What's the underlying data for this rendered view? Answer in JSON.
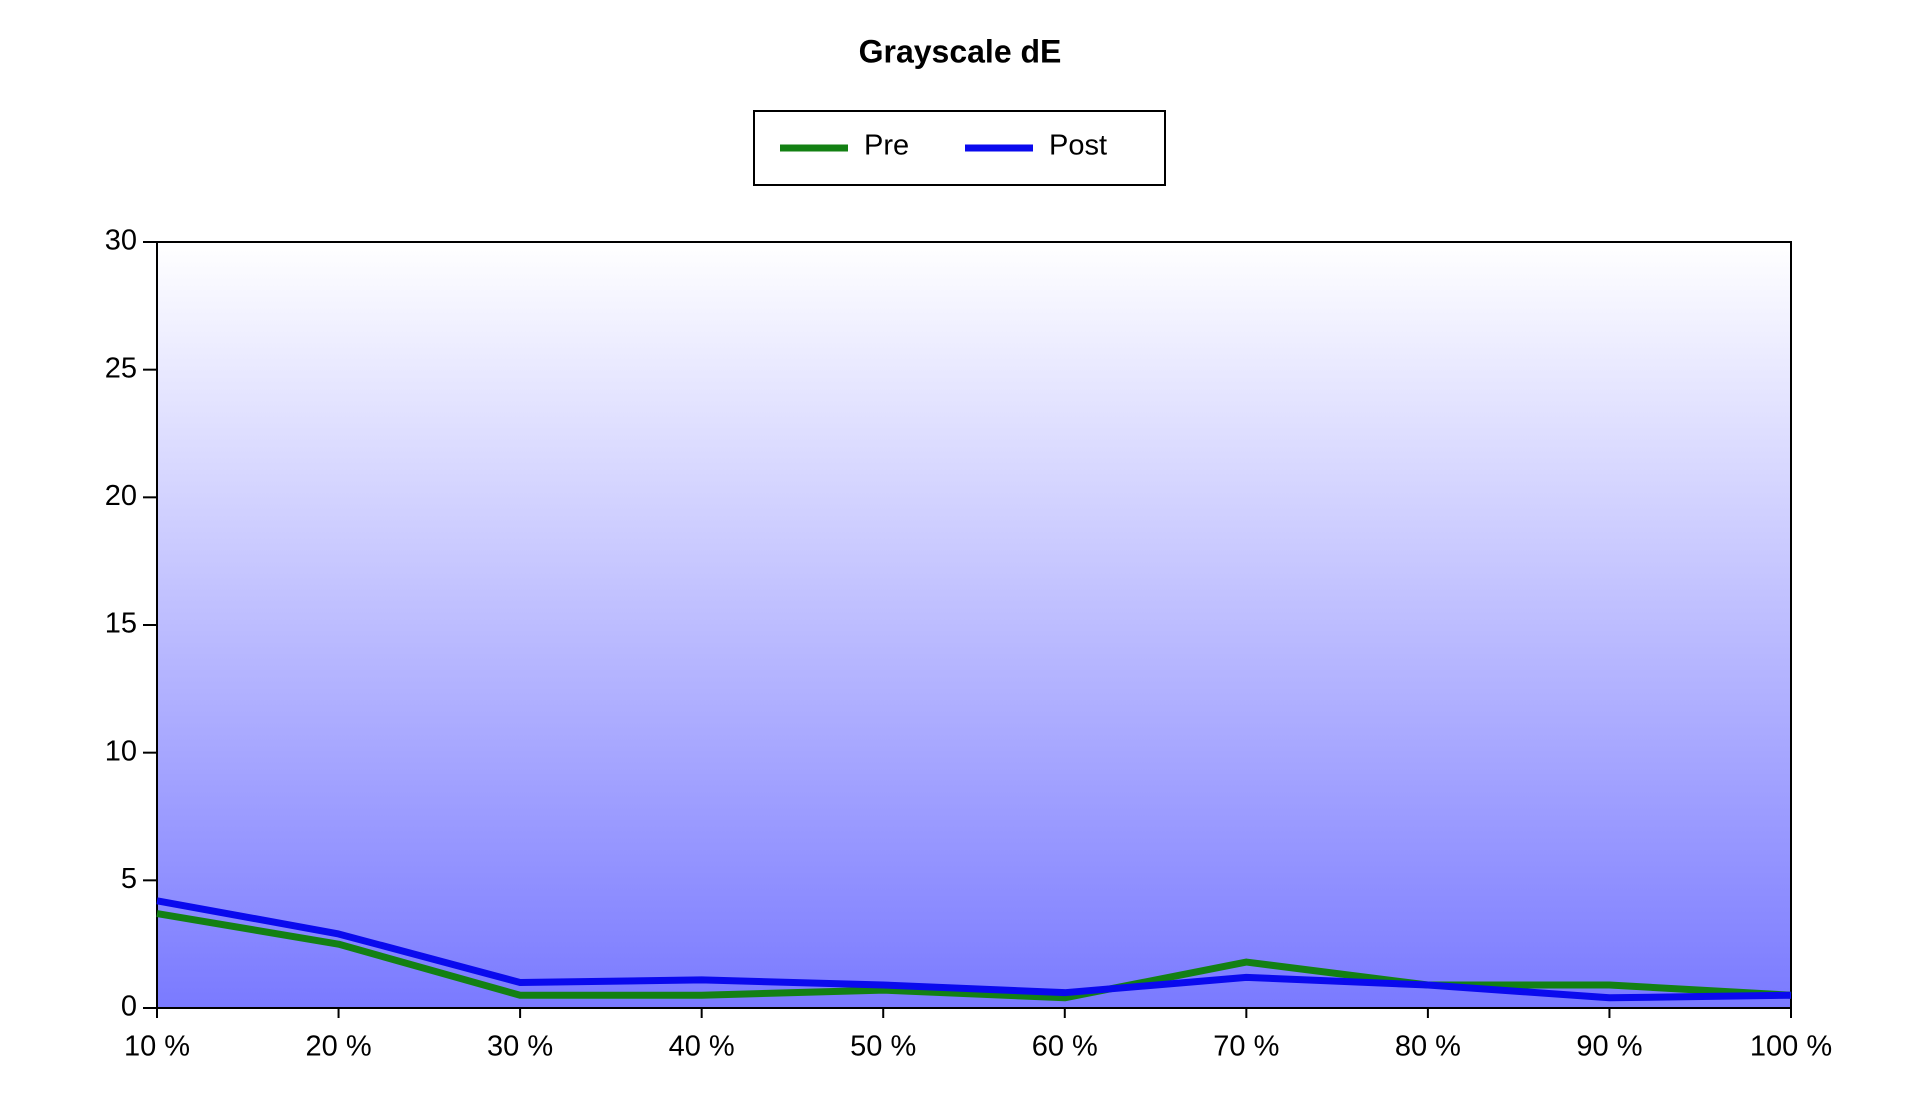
{
  "chart_data": {
    "type": "line",
    "title": "Grayscale dE",
    "categories": [
      "10 %",
      "20 %",
      "30 %",
      "40 %",
      "50 %",
      "60 %",
      "70 %",
      "80 %",
      "90 %",
      "100 %"
    ],
    "series": [
      {
        "name": "Pre",
        "color": "#138013",
        "values": [
          3.7,
          2.5,
          0.5,
          0.5,
          0.7,
          0.4,
          1.8,
          0.9,
          0.9,
          0.5
        ]
      },
      {
        "name": "Post",
        "color": "#0a0aee",
        "values": [
          4.2,
          2.9,
          1.0,
          1.1,
          0.9,
          0.6,
          1.2,
          0.9,
          0.4,
          0.5
        ]
      }
    ],
    "ylim": [
      0,
      30
    ],
    "yticks": [
      0,
      5,
      10,
      15,
      20,
      25,
      30
    ]
  }
}
